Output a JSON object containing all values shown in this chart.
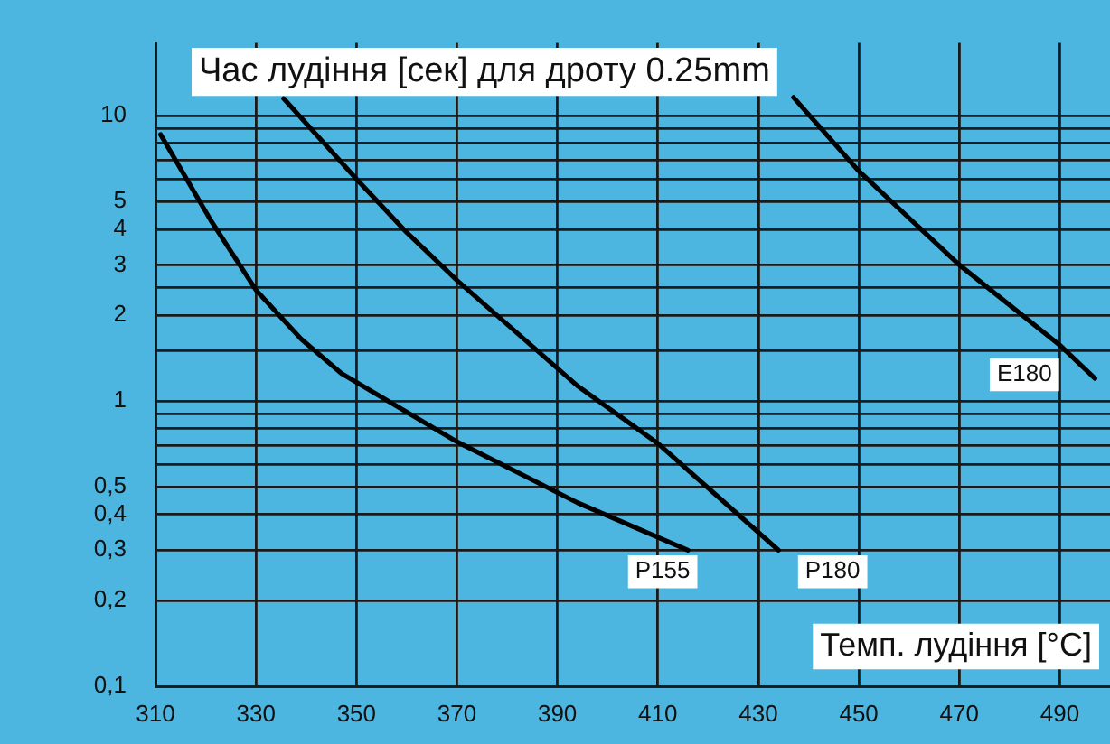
{
  "chart_data": {
    "type": "line",
    "title": "Час лудіння [сек] для дроту 0.25mm",
    "xlabel": "Темп. лудіння [°C]",
    "series": [
      {
        "name": "P155",
        "color": "#000000",
        "x": [
          311,
          321,
          330,
          339,
          347,
          370,
          394,
          416
        ],
        "values": [
          8.6,
          4.3,
          2.45,
          1.65,
          1.25,
          0.72,
          0.44,
          0.3
        ]
      },
      {
        "name": "P180",
        "color": "#000000",
        "x": [
          335.5,
          350,
          360,
          370,
          394,
          410,
          434
        ],
        "values": [
          11.5,
          6,
          3.9,
          2.65,
          1.13,
          0.71,
          0.3
        ]
      },
      {
        "name": "E180",
        "color": "#000000",
        "x": [
          437,
          450,
          470,
          490,
          497
        ],
        "values": [
          11.6,
          6.4,
          3,
          1.57,
          1.2
        ]
      }
    ],
    "xlim": [
      310,
      500
    ],
    "xticks": [
      310,
      330,
      350,
      370,
      390,
      410,
      430,
      450,
      470,
      490
    ],
    "ylim": [
      0.1,
      18
    ],
    "yticks": [
      {
        "value": 0.1,
        "label": "0,1"
      },
      {
        "value": 0.2,
        "label": "0,2"
      },
      {
        "value": 0.3,
        "label": "0,3"
      },
      {
        "value": 0.4,
        "label": "0,4"
      },
      {
        "value": 0.5,
        "label": "0,5"
      },
      {
        "value": 0.6,
        "label": null
      },
      {
        "value": 0.7,
        "label": null
      },
      {
        "value": 0.8,
        "label": null
      },
      {
        "value": 0.9,
        "label": null
      },
      1,
      {
        "value": 1.5,
        "label": null
      },
      2,
      {
        "value": 2.5,
        "label": null
      },
      3,
      4,
      5,
      {
        "value": 6,
        "label": null
      },
      {
        "value": 7,
        "label": null
      },
      {
        "value": 8,
        "label": null
      },
      {
        "value": 9,
        "label": null
      },
      10
    ],
    "log": "y",
    "grid": true,
    "legend": false,
    "marker": "none",
    "line_style": "solid"
  }
}
